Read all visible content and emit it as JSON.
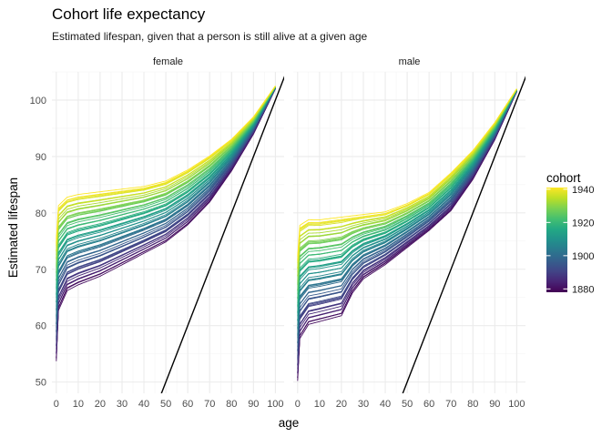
{
  "chart_data": {
    "type": "line",
    "title": "Cohort life expectancy",
    "subtitle": "Estimated lifespan, given that a person is still alive at a given age",
    "xlabel": "age",
    "ylabel": "Estimated lifespan",
    "xlim": [
      -2,
      104
    ],
    "ylim": [
      48,
      105
    ],
    "x_ticks": [
      0,
      10,
      20,
      30,
      40,
      50,
      60,
      70,
      80,
      90,
      100
    ],
    "y_ticks": [
      50,
      60,
      70,
      80,
      90,
      100
    ],
    "grid": true,
    "facets": [
      "female",
      "male"
    ],
    "reference_line": {
      "intercept": 0,
      "slope": 1
    },
    "color_scale": {
      "name": "cohort",
      "palette": "viridis",
      "range": [
        1878,
        1941
      ],
      "ticks": [
        1880,
        1900,
        1920,
        1940
      ],
      "legend_position": "right"
    },
    "series_summary": [
      {
        "facet": "female",
        "cohort": 1880,
        "points": [
          [
            0,
            54
          ],
          [
            1,
            63
          ],
          [
            5,
            66.5
          ],
          [
            10,
            67.5
          ],
          [
            20,
            69
          ],
          [
            30,
            71
          ],
          [
            40,
            73
          ],
          [
            50,
            75
          ],
          [
            60,
            78
          ],
          [
            70,
            82
          ],
          [
            80,
            87.5
          ],
          [
            90,
            94
          ],
          [
            100,
            102
          ]
        ]
      },
      {
        "facet": "female",
        "cohort": 1940,
        "points": [
          [
            0,
            75
          ],
          [
            1,
            81
          ],
          [
            5,
            82.5
          ],
          [
            10,
            83
          ],
          [
            20,
            83.5
          ],
          [
            30,
            84
          ],
          [
            40,
            84.5
          ],
          [
            50,
            85.5
          ],
          [
            60,
            87.5
          ],
          [
            70,
            90
          ],
          [
            80,
            93
          ],
          [
            90,
            97
          ],
          [
            100,
            102.5
          ]
        ]
      },
      {
        "facet": "male",
        "cohort": 1880,
        "points": [
          [
            0,
            50.5
          ],
          [
            1,
            58
          ],
          [
            5,
            60.5
          ],
          [
            10,
            61
          ],
          [
            15,
            61.5
          ],
          [
            20,
            62
          ],
          [
            25,
            66
          ],
          [
            30,
            68.5
          ],
          [
            40,
            71
          ],
          [
            50,
            74
          ],
          [
            60,
            77
          ],
          [
            70,
            80.5
          ],
          [
            80,
            86
          ],
          [
            90,
            93
          ],
          [
            100,
            101.5
          ]
        ]
      },
      {
        "facet": "male",
        "cohort": 1940,
        "points": [
          [
            0,
            72
          ],
          [
            1,
            77.5
          ],
          [
            5,
            78.5
          ],
          [
            10,
            78.5
          ],
          [
            20,
            79
          ],
          [
            30,
            79.5
          ],
          [
            40,
            80
          ],
          [
            50,
            81.5
          ],
          [
            60,
            83.5
          ],
          [
            70,
            87
          ],
          [
            80,
            91
          ],
          [
            90,
            96
          ],
          [
            100,
            102
          ]
        ]
      }
    ]
  }
}
